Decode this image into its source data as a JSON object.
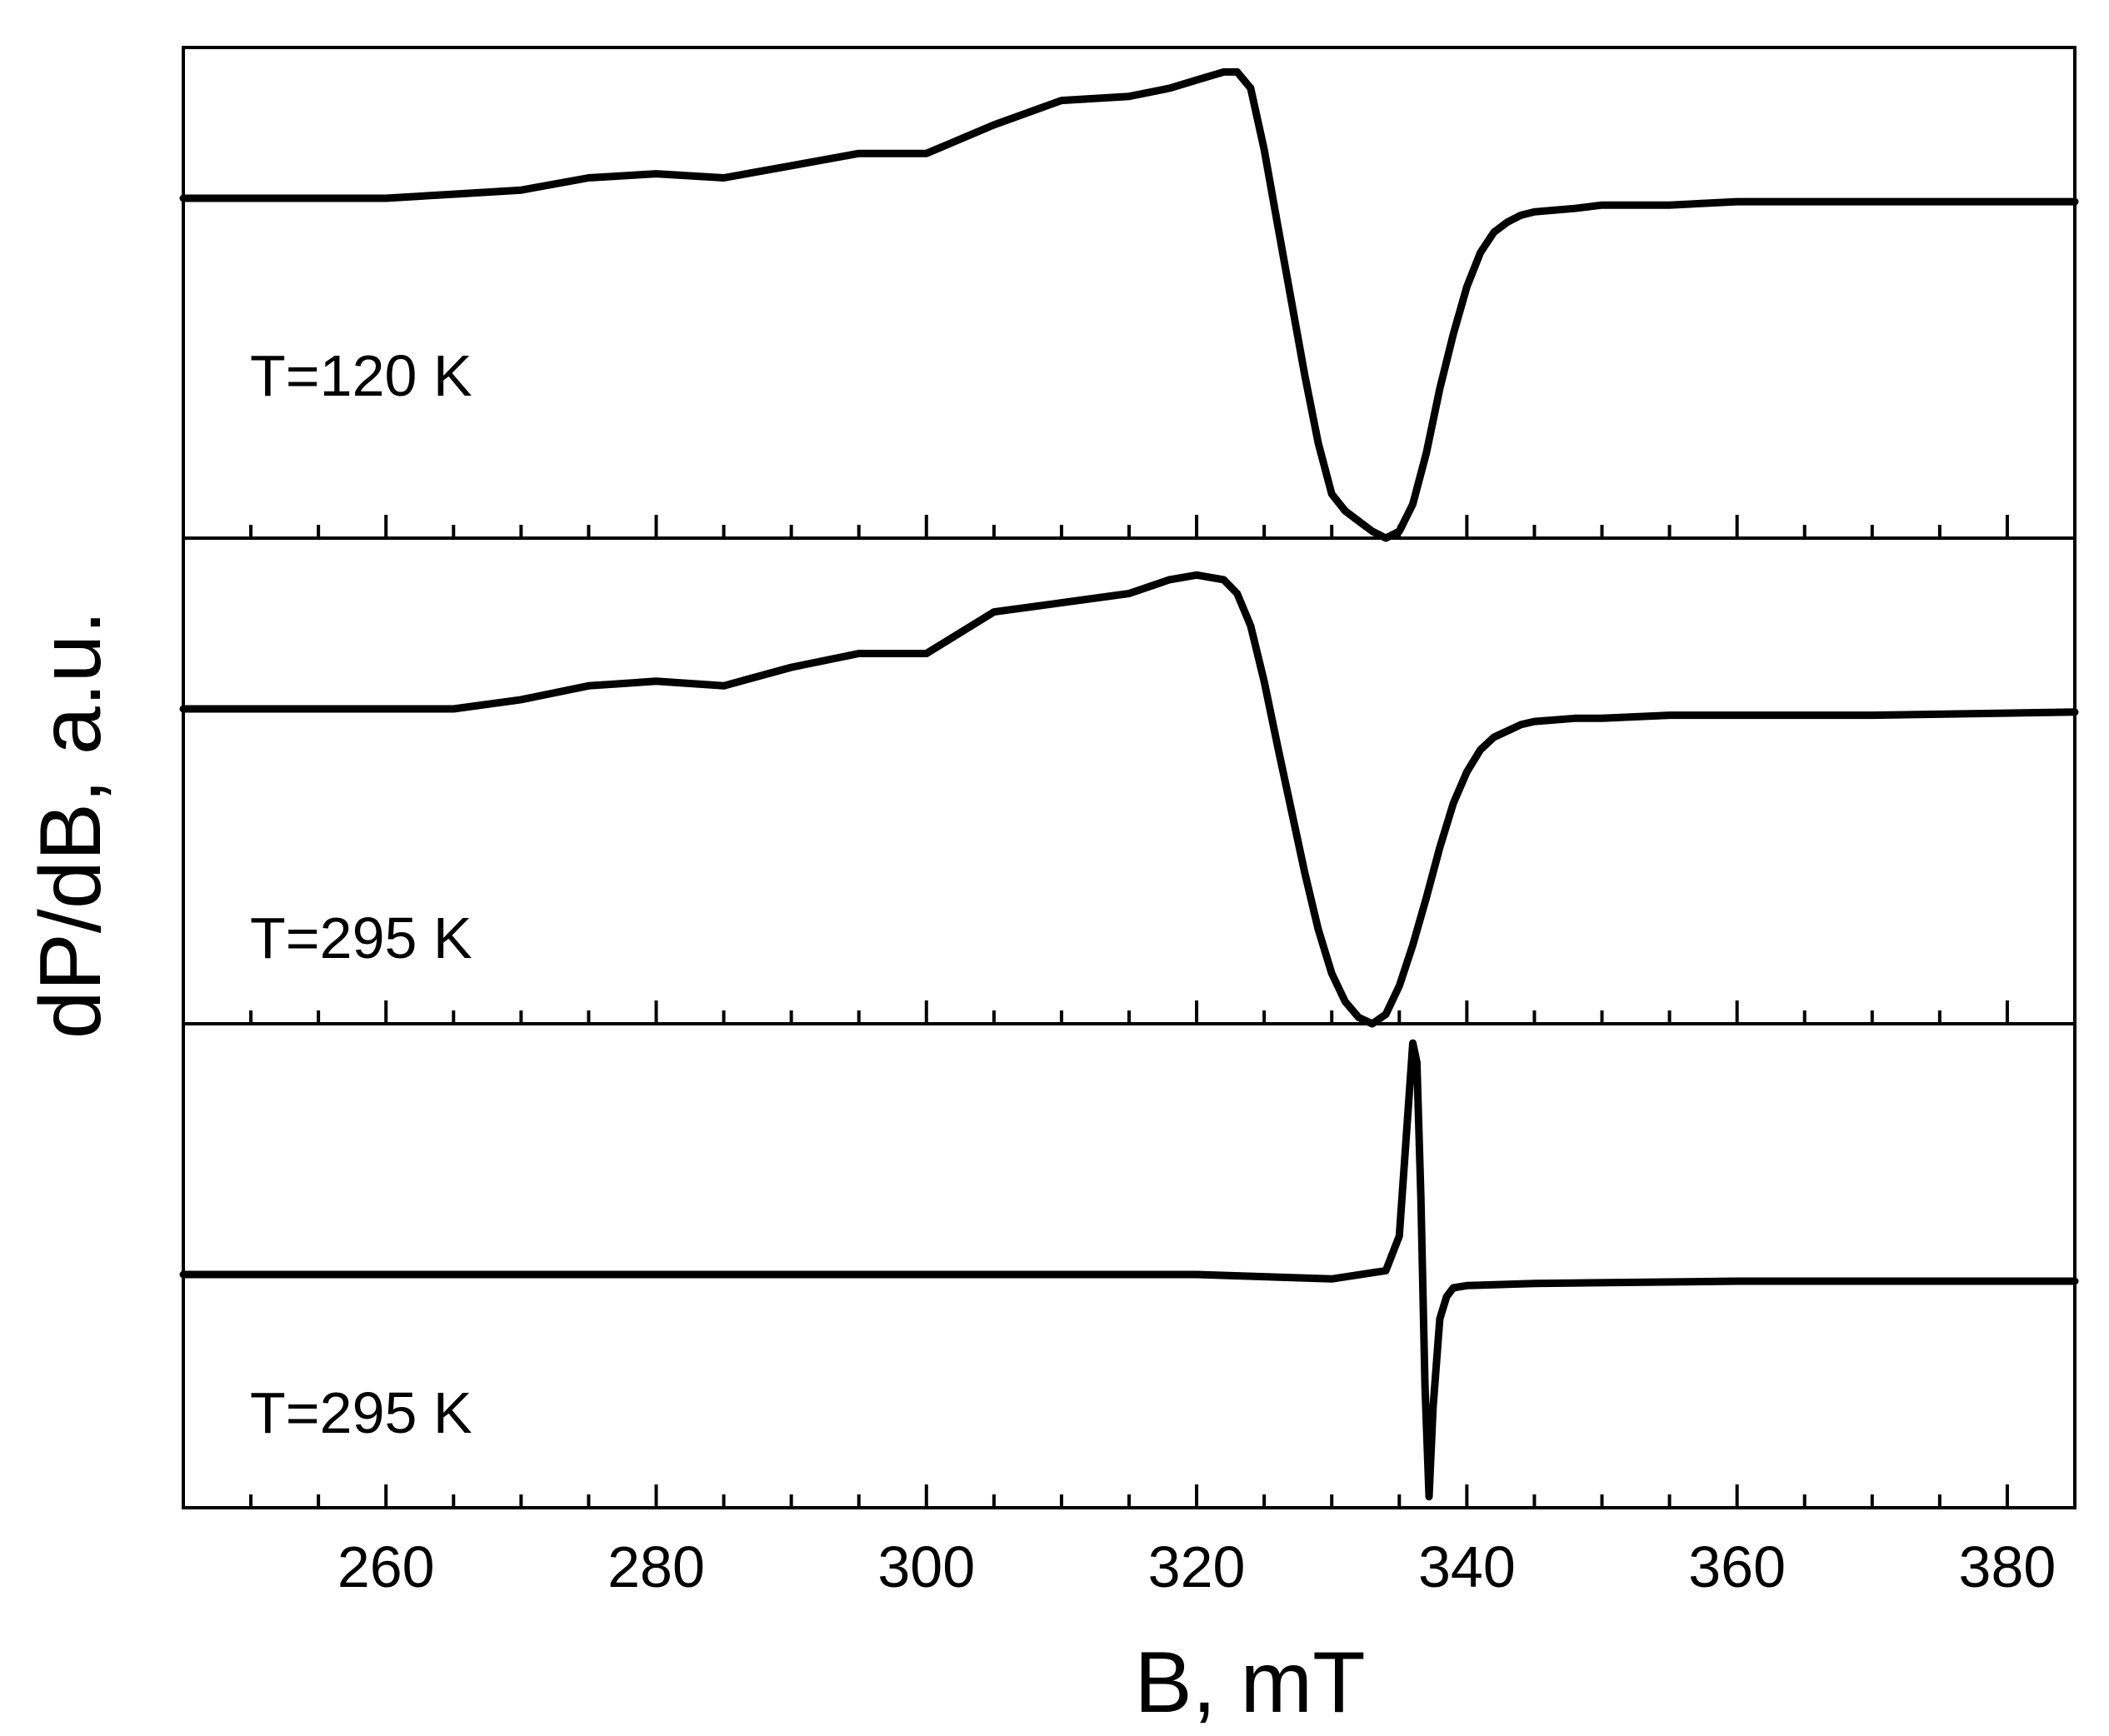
{
  "chart_data": {
    "type": "line",
    "xlabel": "B, mT",
    "ylabel": "dP/dB, a.u.",
    "xlim": [
      245,
      385
    ],
    "x_ticks": [
      260,
      280,
      300,
      320,
      340,
      360,
      380
    ],
    "x_minor_step": 5,
    "grid": false,
    "line_color": "#000000",
    "panels": [
      {
        "label": "T=120 K",
        "ylim": [
          -1.0,
          0.37
        ],
        "series": [
          {
            "x": [
              245,
              250,
              255,
              260,
              265,
              270,
              275,
              280,
              285,
              290,
              295,
              300,
              305,
              310,
              315,
              318,
              320,
              322,
              323,
              324,
              325,
              326,
              327,
              328,
              329,
              330,
              331,
              332,
              333,
              334,
              335,
              336,
              337,
              338,
              339,
              340,
              341,
              342,
              343,
              344,
              345,
              348,
              350,
              355,
              360,
              370,
              385
            ],
            "y": [
              0.0,
              0.0,
              0.0,
              0.0,
              0.01,
              0.02,
              0.05,
              0.06,
              0.05,
              0.08,
              0.11,
              0.11,
              0.18,
              0.24,
              0.25,
              0.27,
              0.29,
              0.31,
              0.31,
              0.27,
              0.12,
              -0.08,
              -0.3,
              -0.52,
              -0.72,
              -0.87,
              -0.92,
              -0.95,
              -0.98,
              -1.0,
              -0.98,
              -0.9,
              -0.75,
              -0.56,
              -0.4,
              -0.26,
              -0.16,
              -0.1,
              -0.07,
              -0.05,
              -0.04,
              -0.03,
              -0.02,
              -0.02,
              -0.01,
              -0.01,
              -0.01
            ]
          }
        ]
      },
      {
        "label": "T=295 K",
        "ylim": [
          -1.0,
          0.37
        ],
        "series": [
          {
            "x": [
              245,
              250,
              255,
              260,
              265,
              270,
              275,
              280,
              285,
              290,
              295,
              300,
              305,
              310,
              315,
              318,
              320,
              322,
              323,
              324,
              325,
              326,
              327,
              328,
              329,
              330,
              331,
              332,
              333,
              334,
              335,
              336,
              337,
              338,
              339,
              340,
              341,
              342,
              343,
              344,
              345,
              348,
              350,
              355,
              360,
              370,
              385
            ],
            "y": [
              0.0,
              0.0,
              0.0,
              0.0,
              0.0,
              0.02,
              0.05,
              0.06,
              0.05,
              0.09,
              0.12,
              0.12,
              0.21,
              0.23,
              0.25,
              0.28,
              0.29,
              0.28,
              0.25,
              0.18,
              0.06,
              -0.12,
              -0.32,
              -0.52,
              -0.7,
              -0.84,
              -0.93,
              -0.98,
              -1.0,
              -0.97,
              -0.88,
              -0.75,
              -0.6,
              -0.44,
              -0.3,
              -0.2,
              -0.13,
              -0.09,
              -0.07,
              -0.05,
              -0.04,
              -0.03,
              -0.03,
              -0.02,
              -0.02,
              -0.02,
              -0.01
            ]
          }
        ]
      },
      {
        "label": "T=295 K",
        "ylim": [
          -1.05,
          1.3
        ],
        "series": [
          {
            "x": [
              245,
              260,
              280,
              300,
              320,
              330,
              334,
              335,
              335.5,
              336,
              336.3,
              336.6,
              336.9,
              337.2,
              337.5,
              338,
              338.5,
              339,
              340,
              345,
              360,
              385
            ],
            "y": [
              0.0,
              0.0,
              0.0,
              0.0,
              0.0,
              -0.02,
              0.02,
              0.2,
              0.7,
              1.2,
              1.1,
              0.4,
              -0.5,
              -1.0,
              -0.6,
              -0.2,
              -0.1,
              -0.06,
              -0.05,
              -0.04,
              -0.03,
              -0.03
            ]
          }
        ]
      }
    ]
  }
}
